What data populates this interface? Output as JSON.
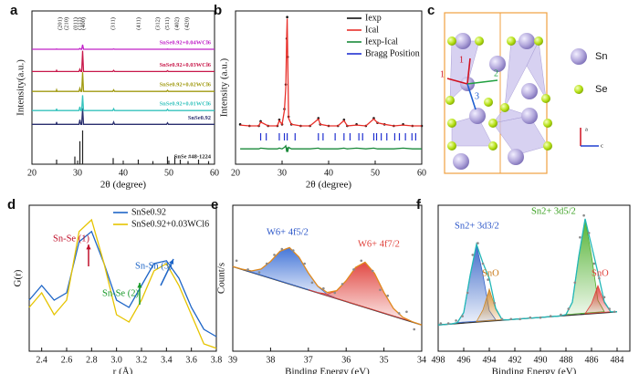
{
  "chart_data": [
    {
      "type": "line",
      "panel": "a",
      "xlabel": "2θ (degree)",
      "ylabel": "Intensity(a.u.)",
      "xlim": [
        20,
        60
      ],
      "ylim": [
        0,
        10
      ],
      "xticks": [
        20,
        30,
        40,
        50,
        60
      ],
      "legend": "inline",
      "reflections": {
        "labels": [
          "(201)",
          "(210)",
          "(011)",
          "(111)",
          "(400)",
          "(311)",
          "(411)",
          "(312)",
          "(511)",
          "(402)",
          "(420)"
        ],
        "x": [
          26.2,
          27.6,
          29.6,
          30.5,
          31.3,
          37.8,
          43.4,
          47.6,
          49.7,
          51.8,
          54.0
        ]
      },
      "x": [
        20,
        25.3,
        25.4,
        25.5,
        30.3,
        30.5,
        30.7,
        30.9,
        31.1,
        31.3,
        37.7,
        37.9,
        38.1,
        49.5,
        49.7,
        49.9,
        60
      ],
      "series": [
        {
          "name": "SnSe #48-1224",
          "color": "#222222",
          "style": "stem",
          "x": [
            25.4,
            29.4,
            30.5,
            31.1,
            37.8,
            43.3,
            46.5,
            49.7,
            51.3,
            52.5,
            54.2,
            56.5,
            58.7
          ],
          "values": [
            0.3,
            0.5,
            1.5,
            2.2,
            0.4,
            0.3,
            0.2,
            0.5,
            0.5,
            0.3,
            0.2,
            0.3,
            0.2
          ]
        },
        {
          "name": "SnSe0.92",
          "color": "#2a2f6e",
          "style": "line",
          "values": [
            2.6,
            2.6,
            2.75,
            2.6,
            2.6,
            2.9,
            2.6,
            2.6,
            3.65,
            2.6,
            2.6,
            2.75,
            2.6,
            2.6,
            2.7,
            2.6,
            2.6
          ]
        },
        {
          "name": "SnSe0.92+0.01WCl6",
          "color": "#35c3bd",
          "style": "line",
          "values": [
            3.5,
            3.5,
            3.62,
            3.5,
            3.5,
            3.75,
            3.5,
            3.5,
            4.5,
            3.5,
            3.5,
            3.62,
            3.5,
            3.5,
            3.58,
            3.5,
            3.5
          ]
        },
        {
          "name": "SnSe0.92+0.02WCl6",
          "color": "#a09a10",
          "style": "line",
          "values": [
            4.75,
            4.75,
            4.85,
            4.75,
            4.75,
            4.95,
            4.75,
            4.75,
            6.0,
            4.75,
            4.75,
            4.85,
            4.75,
            4.75,
            4.82,
            4.75,
            4.75
          ]
        },
        {
          "name": "SnSe0.92+0.03WCl6",
          "color": "#c8184a",
          "style": "line",
          "values": [
            6.05,
            6.05,
            6.12,
            6.05,
            6.05,
            6.2,
            6.05,
            6.05,
            7.4,
            6.05,
            6.05,
            6.12,
            6.05,
            6.05,
            6.1,
            6.05,
            6.05
          ]
        },
        {
          "name": "SnSe0.92+0.04WCl6",
          "color": "#c020c8",
          "style": "line",
          "values": [
            7.5,
            7.5,
            7.52,
            7.5,
            7.5,
            7.55,
            7.5,
            7.5,
            7.8,
            7.5,
            7.5,
            7.52,
            7.5,
            7.5,
            7.51,
            7.5,
            7.5
          ]
        }
      ]
    },
    {
      "type": "line",
      "panel": "b",
      "xlabel": "2θ (degree)",
      "ylabel": "Intensity (a.u.)",
      "xlim": [
        20,
        60
      ],
      "ylim": [
        0,
        10
      ],
      "xticks": [
        20,
        30,
        40,
        50,
        60
      ],
      "legend": "upper right",
      "x": [
        21,
        23,
        25,
        25.4,
        27,
        29,
        29.4,
        30,
        30.5,
        30.8,
        31,
        31.1,
        31.2,
        31.4,
        32,
        34,
        36,
        37.8,
        38.2,
        40,
        42,
        43.3,
        44,
        46,
        48,
        49.7,
        50.5,
        52,
        54,
        56,
        58,
        60
      ],
      "series": [
        {
          "name": "Iexp",
          "color": "#111111",
          "style": "dots",
          "values": [
            2.6,
            2.5,
            2.5,
            2.8,
            2.5,
            2.5,
            2.9,
            2.6,
            3.6,
            5.2,
            8.2,
            9.6,
            7.0,
            3.1,
            2.6,
            2.5,
            2.5,
            3.0,
            2.6,
            2.5,
            2.5,
            2.9,
            2.5,
            2.6,
            2.5,
            3.0,
            2.7,
            2.6,
            2.5,
            2.6,
            2.5,
            2.5
          ]
        },
        {
          "name": "Ical",
          "color": "#e8302a",
          "style": "line",
          "values": [
            2.55,
            2.5,
            2.5,
            2.75,
            2.5,
            2.5,
            2.85,
            2.6,
            3.5,
            5.0,
            8.4,
            9.5,
            7.2,
            3.0,
            2.6,
            2.5,
            2.5,
            2.95,
            2.6,
            2.5,
            2.5,
            2.85,
            2.5,
            2.55,
            2.5,
            2.95,
            2.7,
            2.6,
            2.5,
            2.55,
            2.5,
            2.5
          ]
        },
        {
          "name": "Iexp-Ical",
          "color": "#1a8a3a",
          "style": "line",
          "values": [
            1.0,
            1.0,
            1.0,
            1.05,
            1.0,
            1.0,
            1.05,
            1.0,
            1.1,
            1.2,
            0.8,
            1.1,
            0.8,
            1.1,
            1.0,
            1.0,
            1.0,
            1.05,
            1.0,
            1.0,
            1.0,
            1.05,
            1.0,
            1.05,
            1.0,
            1.05,
            1.0,
            1.0,
            1.0,
            1.05,
            1.0,
            1.0
          ]
        },
        {
          "name": "Bragg Position",
          "color": "#2030d0",
          "style": "ticks",
          "x": [
            25.4,
            26.6,
            29.4,
            30.5,
            31.1,
            32.8,
            37.8,
            38.8,
            41.4,
            43.3,
            44.6,
            46.5,
            47.3,
            49.7,
            50.3,
            51.3,
            52.5,
            54.2,
            55.2,
            56.5,
            57.9,
            58.7
          ]
        }
      ]
    },
    {
      "type": "line",
      "panel": "d",
      "xlabel": "r (Å)",
      "ylabel": "G(r)",
      "xlim": [
        2.3,
        3.8
      ],
      "ylim": [
        0,
        1
      ],
      "legend": "upper right",
      "xticks": [
        2.4,
        2.6,
        2.8,
        {
          "value": 3,
          "label": "3.0"
        },
        3.2,
        3.4,
        3.6,
        3.8
      ],
      "x": [
        2.3,
        2.4,
        2.5,
        2.6,
        2.7,
        2.8,
        2.9,
        3.0,
        3.1,
        3.2,
        3.3,
        3.4,
        3.5,
        3.6,
        3.7,
        3.8
      ],
      "series": [
        {
          "name": "SnSe0.92",
          "color": "#1f66c7",
          "style": "line",
          "values": [
            0.35,
            0.45,
            0.35,
            0.4,
            0.75,
            0.82,
            0.6,
            0.35,
            0.3,
            0.45,
            0.6,
            0.62,
            0.5,
            0.3,
            0.15,
            0.1
          ]
        },
        {
          "name": "SnSe0.92+0.03WCl6",
          "color": "#e6c400",
          "style": "line",
          "values": [
            0.3,
            0.4,
            0.25,
            0.35,
            0.82,
            0.9,
            0.6,
            0.25,
            0.2,
            0.35,
            0.55,
            0.6,
            0.45,
            0.25,
            0.05,
            0.02
          ]
        }
      ],
      "annotations": [
        {
          "text": "Sn-Se (1)",
          "color": "#c0102a"
        },
        {
          "text": "Sn-Se (2)",
          "color": "#1a9a2a"
        },
        {
          "text": "Sn-Sn (3)",
          "color": "#1f66c7"
        }
      ]
    },
    {
      "type": "line",
      "panel": "e",
      "xlabel": "Binding Energy (eV)",
      "ylabel": "Count/s",
      "xlim": [
        39,
        34
      ],
      "ylim": [
        0,
        1
      ],
      "xticks": [
        39,
        38,
        37,
        36,
        35,
        34
      ],
      "series": [
        {
          "color": "#333333",
          "style": "line",
          "x": [
            39,
            34
          ],
          "values": [
            0.58,
            0.18
          ]
        },
        {
          "color": "#3b6fd6",
          "style": "area",
          "x": [
            38.75,
            38.5,
            38.25,
            38,
            37.75,
            37.5,
            37.25,
            37,
            36.75,
            36.5,
            36.25
          ],
          "values": [
            0.562,
            0.55,
            0.563,
            0.615,
            0.685,
            0.71,
            0.645,
            0.535,
            0.443,
            0.39,
            0.362
          ]
        },
        {
          "color": "#e0403a",
          "style": "area",
          "x": [
            37,
            36.75,
            36.5,
            36.25,
            36,
            35.75,
            35.5,
            35.25,
            35,
            34.75,
            34.5,
            34.25
          ],
          "values": [
            0.421,
            0.402,
            0.392,
            0.413,
            0.483,
            0.574,
            0.61,
            0.534,
            0.403,
            0.293,
            0.232,
            0.202
          ]
        },
        {
          "color": "#e08a1e",
          "style": "line",
          "x": [
            39,
            38.75,
            38.5,
            38.25,
            38,
            37.75,
            37.5,
            37.25,
            37,
            36.75,
            36.5,
            36.25,
            36,
            35.75,
            35.5,
            35.25,
            35,
            34.75,
            34.5,
            34.25,
            34
          ],
          "values": [
            0.58,
            0.562,
            0.55,
            0.563,
            0.615,
            0.685,
            0.71,
            0.645,
            0.536,
            0.445,
            0.402,
            0.415,
            0.483,
            0.574,
            0.61,
            0.534,
            0.403,
            0.293,
            0.232,
            0.202,
            0.18
          ]
        },
        {
          "color": "#8a8a8a",
          "style": "dots",
          "x": [
            38.9,
            38.6,
            38.3,
            38.1,
            37.9,
            37.7,
            37.4,
            37.1,
            36.9,
            36.6,
            36.3,
            36.1,
            35.8,
            35.6,
            35.3,
            35.1,
            34.9,
            34.6,
            34.4,
            34.2
          ],
          "values": [
            0.62,
            0.56,
            0.54,
            0.6,
            0.66,
            0.7,
            0.69,
            0.6,
            0.47,
            0.43,
            0.4,
            0.46,
            0.56,
            0.62,
            0.55,
            0.42,
            0.38,
            0.26,
            0.27,
            0.15
          ]
        }
      ],
      "annotations": [
        {
          "text": "W6+ 4f5/2",
          "color": "#2a55c8"
        },
        {
          "text": "W6+ 4f7/2",
          "color": "#e0403a"
        }
      ]
    },
    {
      "type": "line",
      "panel": "f",
      "xlabel": "Binding Energy (eV)",
      "xlim": [
        498,
        483
      ],
      "ylim": [
        0,
        1
      ],
      "xticks": [
        498,
        496,
        494,
        492,
        490,
        488,
        486,
        484
      ],
      "series": [
        {
          "color": "#333333",
          "style": "line",
          "x": [
            498,
            484
          ],
          "values": [
            0.18,
            0.27
          ]
        },
        {
          "color": "#3866c8",
          "style": "area",
          "x": [
            496.5,
            496,
            495.5,
            495,
            494.5,
            494,
            493.5
          ],
          "values": [
            0.196,
            0.265,
            0.519,
            0.729,
            0.526,
            0.278,
            0.215
          ]
        },
        {
          "color": "#d08a2a",
          "style": "area",
          "x": [
            495,
            494.5,
            494,
            493.5,
            493
          ],
          "values": [
            0.203,
            0.282,
            0.426,
            0.288,
            0.216
          ]
        },
        {
          "color": "#4caf2a",
          "style": "area",
          "x": [
            488,
            487.5,
            487,
            486.5,
            486,
            485.5,
            485
          ],
          "values": [
            0.251,
            0.336,
            0.648,
            0.904,
            0.654,
            0.348,
            0.271
          ]
        },
        {
          "color": "#e0403a",
          "style": "area",
          "x": [
            486.5,
            486,
            485.5,
            485,
            484.5
          ],
          "values": [
            0.257,
            0.325,
            0.45,
            0.332,
            0.27
          ]
        },
        {
          "color": "#22b7b7",
          "style": "line",
          "x": [
            498,
            497.5,
            497,
            496.5,
            496,
            495.5,
            495,
            494.5,
            494,
            493.5,
            493,
            492.5,
            492,
            491.5,
            491,
            490.5,
            490,
            489.5,
            489,
            488.5,
            488,
            487.5,
            487,
            486.5,
            486,
            485.5,
            485,
            484.5,
            484
          ],
          "values": [
            0.18,
            0.183,
            0.186,
            0.196,
            0.265,
            0.519,
            0.733,
            0.605,
            0.498,
            0.294,
            0.216,
            0.215,
            0.219,
            0.222,
            0.225,
            0.228,
            0.231,
            0.235,
            0.238,
            0.241,
            0.251,
            0.336,
            0.648,
            0.907,
            0.722,
            0.538,
            0.339,
            0.27,
            0.27
          ]
        },
        {
          "color": "#8a8a8a",
          "style": "dots",
          "x": [
            497.8,
            497.2,
            496.6,
            496.1,
            495.7,
            495.3,
            494.9,
            494.5,
            494.1,
            493.6,
            493,
            492.3,
            491.6,
            490.8,
            490,
            489.2,
            488.4,
            487.8,
            487.3,
            486.9,
            486.6,
            486.2,
            485.8,
            485.4,
            485,
            484.6,
            484.2
          ],
          "values": [
            0.19,
            0.19,
            0.21,
            0.24,
            0.4,
            0.66,
            0.74,
            0.6,
            0.49,
            0.33,
            0.22,
            0.22,
            0.22,
            0.23,
            0.23,
            0.24,
            0.25,
            0.29,
            0.47,
            0.78,
            0.93,
            0.81,
            0.6,
            0.5,
            0.37,
            0.29,
            0.27
          ]
        }
      ],
      "annotations": [
        {
          "text": "Sn2+ 3d3/2",
          "color": "#2a55c8"
        },
        {
          "text": "SnO",
          "color": "#c87a1a"
        },
        {
          "text": "Sn2+ 3d5/2",
          "color": "#3aa020"
        },
        {
          "text": "SnO",
          "color": "#e0403a"
        }
      ]
    }
  ],
  "structure": {
    "panel": "c",
    "legend": [
      "Sn",
      "Se"
    ],
    "bonds": [
      "1",
      "2",
      "3"
    ],
    "axes": [
      "a",
      "c"
    ]
  }
}
